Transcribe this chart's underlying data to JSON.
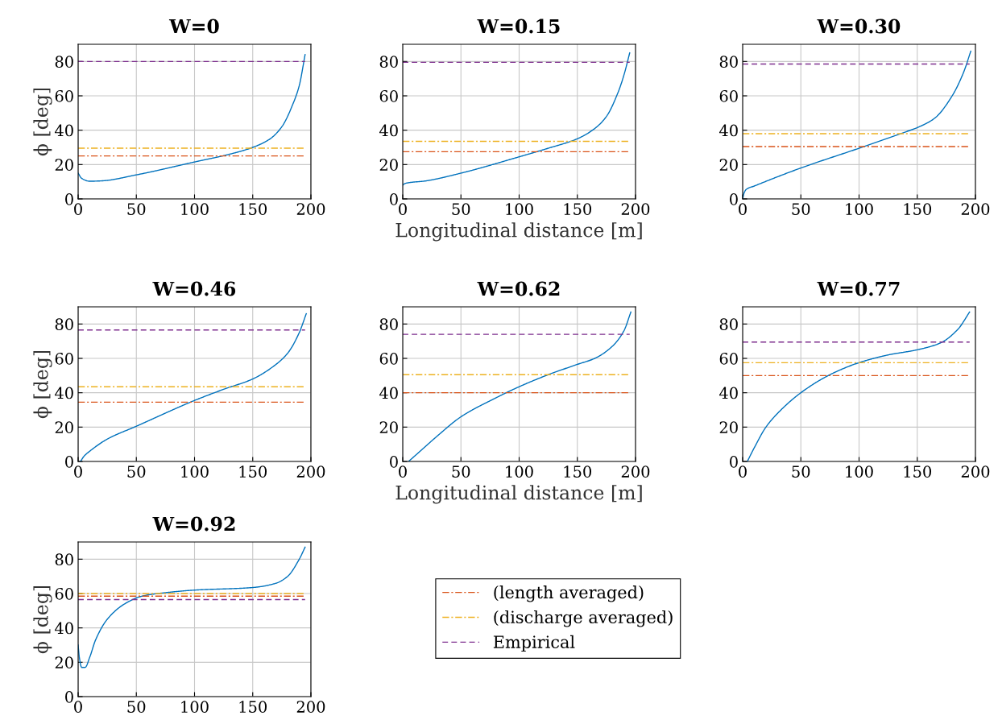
{
  "chart_data": [
    {
      "type": "line",
      "title": "W=0",
      "ylabel": "ϕ [deg]",
      "xlim": [
        0,
        200
      ],
      "ylim": [
        0,
        90
      ],
      "xticks": [
        0,
        50,
        100,
        150,
        200
      ],
      "yticks": [
        0,
        20,
        40,
        60,
        80
      ],
      "grid": true,
      "series": [
        {
          "color": "#0072bd",
          "line_style": "solid",
          "x": [
            0,
            3,
            10,
            20,
            50,
            100,
            130,
            150,
            165,
            175,
            185,
            190,
            195
          ],
          "values": [
            15,
            12,
            10.3,
            10.5,
            14,
            21.5,
            26,
            30,
            35,
            42,
            56,
            66,
            84
          ]
        },
        {
          "color": "#d95319",
          "line_style": "dashdot",
          "x": [
            0,
            195
          ],
          "values": [
            25,
            25
          ]
        },
        {
          "color": "#edb120",
          "line_style": "dashdot",
          "x": [
            0,
            195
          ],
          "values": [
            29.5,
            29.5
          ]
        },
        {
          "color": "#7e2f8e",
          "line_style": "dashed",
          "x": [
            0,
            195
          ],
          "values": [
            80,
            80
          ]
        }
      ]
    },
    {
      "type": "line",
      "title": "W=0.15",
      "xlabel": "Longitudinal distance [m]",
      "xlim": [
        0,
        200
      ],
      "ylim": [
        0,
        90
      ],
      "xticks": [
        0,
        50,
        100,
        150,
        200
      ],
      "yticks": [
        0,
        20,
        40,
        60,
        80
      ],
      "grid": true,
      "series": [
        {
          "color": "#0072bd",
          "line_style": "solid",
          "x": [
            0,
            2,
            20,
            50,
            100,
            125,
            150,
            165,
            175,
            185,
            190,
            195
          ],
          "values": [
            8,
            9,
            10.5,
            15,
            24.5,
            29.5,
            35,
            41,
            48,
            62,
            72,
            85
          ]
        },
        {
          "color": "#d95319",
          "line_style": "dashdot",
          "x": [
            0,
            195
          ],
          "values": [
            27.5,
            27.5
          ]
        },
        {
          "color": "#edb120",
          "line_style": "dashdot",
          "x": [
            0,
            195
          ],
          "values": [
            33.5,
            33.5
          ]
        },
        {
          "color": "#7e2f8e",
          "line_style": "dashed",
          "x": [
            0,
            195
          ],
          "values": [
            79.5,
            79.5
          ]
        }
      ]
    },
    {
      "type": "line",
      "title": "W=0.30",
      "xlim": [
        0,
        200
      ],
      "ylim": [
        0,
        90
      ],
      "xticks": [
        0,
        50,
        100,
        150,
        200
      ],
      "yticks": [
        0,
        20,
        40,
        60,
        80
      ],
      "grid": true,
      "series": [
        {
          "color": "#0072bd",
          "line_style": "solid",
          "x": [
            0,
            1,
            3,
            10,
            50,
            100,
            140,
            150,
            165,
            180,
            190,
            196
          ],
          "values": [
            0,
            3,
            5.5,
            7.5,
            18,
            29.5,
            39,
            41.5,
            47,
            60,
            74,
            86
          ]
        },
        {
          "color": "#d95319",
          "line_style": "dashdot",
          "x": [
            0,
            195
          ],
          "values": [
            30.5,
            30.5
          ]
        },
        {
          "color": "#edb120",
          "line_style": "dashdot",
          "x": [
            0,
            195
          ],
          "values": [
            38,
            38
          ]
        },
        {
          "color": "#7e2f8e",
          "line_style": "dashed",
          "x": [
            0,
            195
          ],
          "values": [
            78.5,
            78.5
          ]
        }
      ]
    },
    {
      "type": "line",
      "title": "W=0.46",
      "ylabel": "ϕ [deg]",
      "xlim": [
        0,
        200
      ],
      "ylim": [
        0,
        90
      ],
      "xticks": [
        0,
        50,
        100,
        150,
        200
      ],
      "yticks": [
        0,
        20,
        40,
        60,
        80
      ],
      "grid": true,
      "series": [
        {
          "color": "#0072bd",
          "line_style": "solid",
          "x": [
            2,
            5,
            10,
            25,
            50,
            100,
            125,
            150,
            165,
            180,
            190,
            196
          ],
          "values": [
            0,
            3,
            6,
            13,
            20.5,
            35.5,
            42,
            48,
            54,
            63,
            75,
            86
          ]
        },
        {
          "color": "#d95319",
          "line_style": "dashdot",
          "x": [
            0,
            195
          ],
          "values": [
            34.5,
            34.5
          ]
        },
        {
          "color": "#edb120",
          "line_style": "dashdot",
          "x": [
            0,
            195
          ],
          "values": [
            43.5,
            43.5
          ]
        },
        {
          "color": "#7e2f8e",
          "line_style": "dashed",
          "x": [
            0,
            195
          ],
          "values": [
            76.5,
            76.5
          ]
        }
      ]
    },
    {
      "type": "line",
      "title": "W=0.62",
      "xlabel": "Longitudinal distance [m]",
      "xlim": [
        0,
        200
      ],
      "ylim": [
        0,
        90
      ],
      "xticks": [
        0,
        50,
        100,
        150,
        200
      ],
      "yticks": [
        0,
        20,
        40,
        60,
        80
      ],
      "grid": true,
      "series": [
        {
          "color": "#0072bd",
          "line_style": "solid",
          "x": [
            5,
            15,
            30,
            50,
            80,
            100,
            125,
            150,
            165,
            180,
            190,
            196
          ],
          "values": [
            0,
            6,
            15,
            26,
            37,
            43.5,
            50.5,
            56.5,
            60,
            67,
            76,
            87
          ]
        },
        {
          "color": "#d95319",
          "line_style": "dashdot",
          "x": [
            0,
            195
          ],
          "values": [
            40,
            40
          ]
        },
        {
          "color": "#edb120",
          "line_style": "dashdot",
          "x": [
            0,
            195
          ],
          "values": [
            50.5,
            50.5
          ]
        },
        {
          "color": "#7e2f8e",
          "line_style": "dashed",
          "x": [
            0,
            195
          ],
          "values": [
            74,
            74
          ]
        }
      ]
    },
    {
      "type": "line",
      "title": "W=0.77",
      "xlim": [
        0,
        200
      ],
      "ylim": [
        0,
        90
      ],
      "xticks": [
        0,
        50,
        100,
        150,
        200
      ],
      "yticks": [
        0,
        20,
        40,
        60,
        80
      ],
      "grid": true,
      "series": [
        {
          "color": "#0072bd",
          "line_style": "solid",
          "x": [
            4,
            10,
            20,
            30,
            50,
            75,
            100,
            125,
            150,
            170,
            185,
            195
          ],
          "values": [
            0,
            8,
            20,
            28,
            40,
            50.5,
            57.5,
            62,
            65,
            69,
            77,
            87
          ]
        },
        {
          "color": "#d95319",
          "line_style": "dashdot",
          "x": [
            0,
            195
          ],
          "values": [
            50,
            50
          ]
        },
        {
          "color": "#edb120",
          "line_style": "dashdot",
          "x": [
            0,
            195
          ],
          "values": [
            57.5,
            57.5
          ]
        },
        {
          "color": "#7e2f8e",
          "line_style": "dashed",
          "x": [
            0,
            195
          ],
          "values": [
            69.5,
            69.5
          ]
        }
      ]
    },
    {
      "type": "line",
      "title": "W=0.92",
      "ylabel": "ϕ [deg]",
      "xlim": [
        0,
        200
      ],
      "ylim": [
        0,
        90
      ],
      "xticks": [
        0,
        50,
        100,
        150,
        200
      ],
      "yticks": [
        0,
        20,
        40,
        60,
        80
      ],
      "grid": true,
      "legend": "right",
      "series": [
        {
          "color": "#0072bd",
          "line_style": "solid",
          "x": [
            0,
            1,
            3,
            6,
            10,
            15,
            25,
            40,
            55,
            75,
            100,
            150,
            170,
            180,
            190,
            195
          ],
          "values": [
            30,
            23,
            17,
            17,
            23,
            33,
            45,
            54,
            58.5,
            60.5,
            62,
            63.5,
            66,
            70,
            80,
            87
          ]
        },
        {
          "name": "(length averaged)",
          "color": "#d95319",
          "line_style": "dashdot",
          "x": [
            0,
            195
          ],
          "values": [
            58.5,
            58.5
          ]
        },
        {
          "name": "(discharge averaged)",
          "color": "#edb120",
          "line_style": "dashdot",
          "x": [
            0,
            195
          ],
          "values": [
            60,
            60
          ]
        },
        {
          "name": "Empirical",
          "color": "#7e2f8e",
          "line_style": "dashed",
          "x": [
            0,
            195
          ],
          "values": [
            56.5,
            56.5
          ]
        }
      ]
    }
  ]
}
